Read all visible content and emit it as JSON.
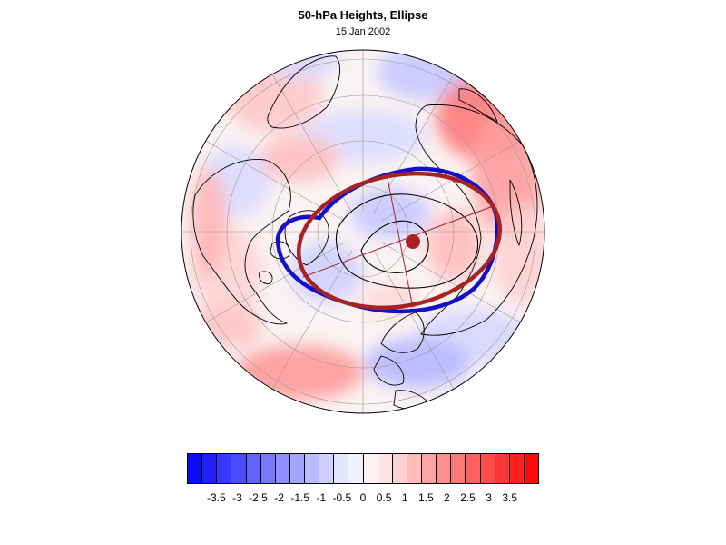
{
  "title": "50-hPa Heights, Ellipse",
  "subtitle": "15 Jan 2002",
  "map": {
    "projection": "polar stereographic (north pole)",
    "fill_type": "height anomaly",
    "vortex_edge_color": "#1010c8",
    "ellipse_color": "#a82222",
    "contour_color": "#000000",
    "coastline_color": "#000000",
    "grid_color": "#9a9a9a"
  },
  "colorbar": {
    "labels": [
      "-3.5",
      "-3",
      "-2.5",
      "-2",
      "-1.5",
      "-1",
      "-0.5",
      "0",
      "0.5",
      "1",
      "1.5",
      "2",
      "2.5",
      "3",
      "3.5"
    ],
    "colors": [
      "#0b0bff",
      "#2020ff",
      "#3636ff",
      "#4c4cff",
      "#6262ff",
      "#7878ff",
      "#8e8eff",
      "#a4a4ff",
      "#babaff",
      "#d0d0ff",
      "#e4e4ff",
      "#f2f2ff",
      "#fff2f2",
      "#ffe4e4",
      "#ffd0d0",
      "#ffbaba",
      "#ffa4a4",
      "#ff8e8e",
      "#ff7878",
      "#ff6262",
      "#ff4c4c",
      "#ff3636",
      "#ff2020",
      "#ff0b0b"
    ]
  }
}
